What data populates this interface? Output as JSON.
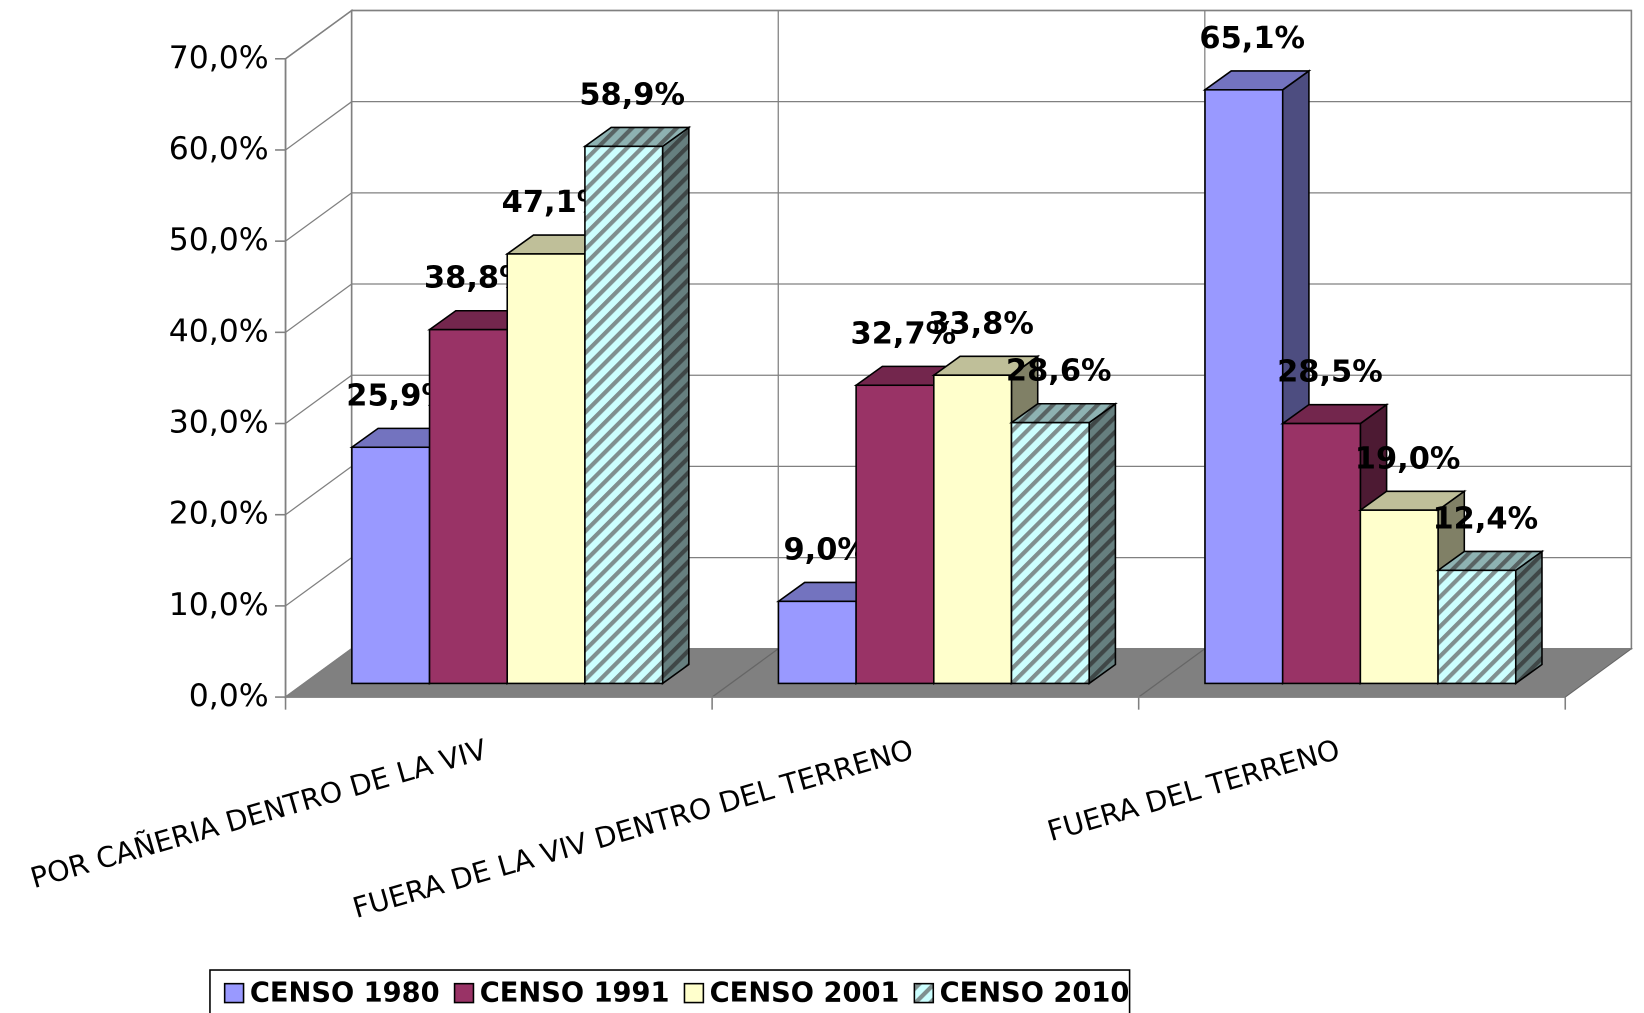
{
  "chart_data": {
    "type": "bar3d",
    "categories": [
      "POR CAÑERIA DENTRO DE LA VIV",
      "FUERA DE LA VIV DENTRO DEL TERRENO",
      "FUERA DEL TERRENO"
    ],
    "series": [
      {
        "name": "CENSO 1980",
        "color": "#9999ff",
        "values": [
          25.9,
          9.0,
          65.1
        ],
        "value_labels": [
          "25,9%",
          "9,0%",
          "65,1%"
        ]
      },
      {
        "name": "CENSO 1991",
        "color": "#993366",
        "values": [
          38.8,
          32.7,
          28.5
        ],
        "value_labels": [
          "38,8%",
          "32,7%",
          "28,5%"
        ]
      },
      {
        "name": "CENSO 2001",
        "color": "#ffffcc",
        "values": [
          47.1,
          33.8,
          19.0
        ],
        "value_labels": [
          "47,1%",
          "33,8%",
          "19,0%"
        ]
      },
      {
        "name": "CENSO 2010",
        "color": "#ccffff",
        "hatch": true,
        "values": [
          58.9,
          28.6,
          12.4
        ],
        "value_labels": [
          "58,9%",
          "28,6%",
          "12,4%"
        ]
      }
    ],
    "ylim": [
      0,
      70
    ],
    "yticks": [
      {
        "value": 0,
        "label": "0,0%"
      },
      {
        "value": 10,
        "label": "10,0%"
      },
      {
        "value": 20,
        "label": "20,0%"
      },
      {
        "value": 30,
        "label": "30,0%"
      },
      {
        "value": 40,
        "label": "40,0%"
      },
      {
        "value": 50,
        "label": "50,0%"
      },
      {
        "value": 60,
        "label": "60,0%"
      },
      {
        "value": 70,
        "label": "70,0%"
      }
    ],
    "grid": true,
    "legend": "bottom"
  }
}
